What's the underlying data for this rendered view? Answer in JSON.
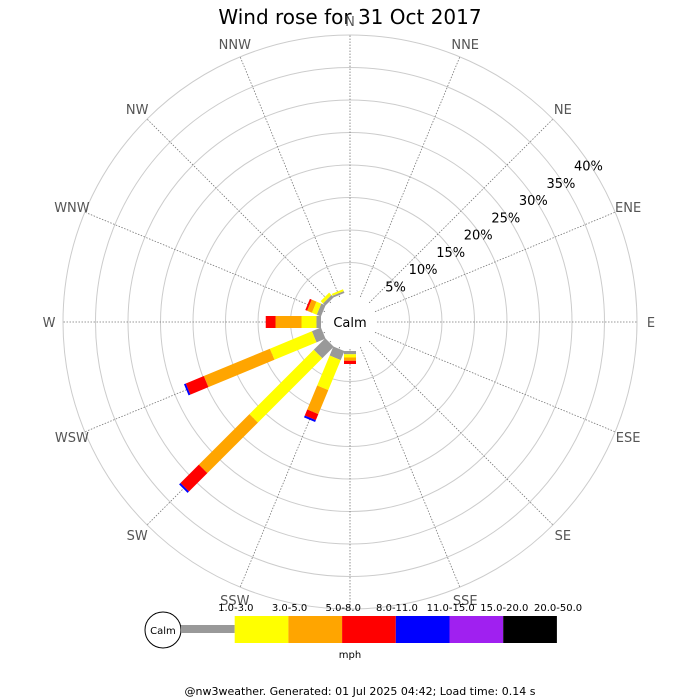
{
  "chart_data": {
    "type": "wind-rose",
    "title": "Wind rose for 31 Oct 2017",
    "directions": [
      "N",
      "NNE",
      "NE",
      "ENE",
      "E",
      "ESE",
      "SE",
      "SSE",
      "S",
      "SSW",
      "SW",
      "WSW",
      "W",
      "WNW",
      "NW",
      "NNW"
    ],
    "rings": [
      "5%",
      "10%",
      "15%",
      "20%",
      "25%",
      "30%",
      "35%",
      "40%"
    ],
    "ring_values": [
      5,
      10,
      15,
      20,
      25,
      30,
      35,
      40
    ],
    "calm_label": "Calm",
    "units": "mph",
    "bins": [
      {
        "label": "1.0-3.0",
        "color": "#999999"
      },
      {
        "label": "3.0-5.0",
        "color": "#ffff00"
      },
      {
        "label": "5.0-8.0",
        "color": "#ffa500"
      },
      {
        "label": "8.0-11.0",
        "color": "#ff0000"
      },
      {
        "label": "11.0-15.0",
        "color": "#0000ff"
      },
      {
        "label": "15.0-20.0",
        "color": "#a020f0"
      },
      {
        "label": "20.0-50.0",
        "color": "#000000"
      }
    ],
    "series": [
      {
        "direction": "S",
        "values": [
          0.5,
          0.5,
          0.5,
          0.5,
          0,
          0,
          0
        ]
      },
      {
        "direction": "SSW",
        "values": [
          1.5,
          5,
          4,
          1,
          0.3,
          0,
          0
        ]
      },
      {
        "direction": "SW",
        "values": [
          2.5,
          14,
          11,
          4,
          0.3,
          0,
          0
        ]
      },
      {
        "direction": "WSW",
        "values": [
          1.5,
          7,
          11,
          3,
          0.3,
          0,
          0
        ]
      },
      {
        "direction": "W",
        "values": [
          0.7,
          2.3,
          4,
          1.5,
          0,
          0,
          0
        ]
      },
      {
        "direction": "WNW",
        "values": [
          0.7,
          0.8,
          0.8,
          0.3,
          0,
          0,
          0
        ]
      },
      {
        "direction": "NW",
        "values": [
          0.5,
          0.5,
          0,
          0,
          0,
          0,
          0
        ]
      },
      {
        "direction": "NNW",
        "values": [
          0.3,
          0.3,
          0,
          0,
          0,
          0,
          0
        ]
      }
    ]
  },
  "footer": "@nw3weather. Generated: 01 Jul 2025 04:42; Load time: 0.14 s"
}
